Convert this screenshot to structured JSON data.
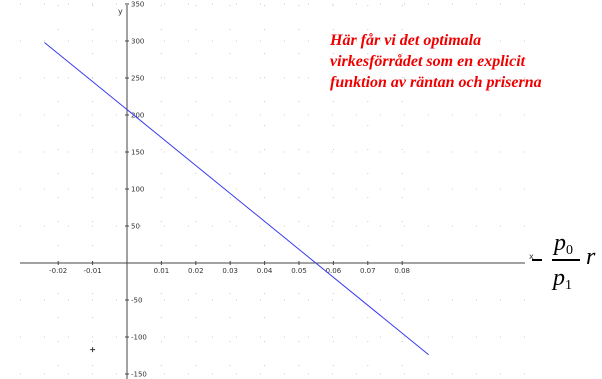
{
  "chart_data": {
    "type": "line",
    "xlabel": "x",
    "ylabel": "y",
    "xlim": [
      -0.024,
      0.093
    ],
    "ylim": [
      -160,
      360
    ],
    "x_ticks": [
      -0.02,
      -0.01,
      0.01,
      0.02,
      0.03,
      0.04,
      0.05,
      0.06,
      0.07,
      0.08
    ],
    "x_tick_labels": [
      "-0.02",
      "-0.01",
      "0.01",
      "0.02",
      "0.03",
      "0.04",
      "0.05",
      "0.06",
      "0.07",
      "0.08"
    ],
    "y_ticks": [
      350,
      300,
      250,
      200,
      150,
      100,
      50,
      -50,
      -100,
      -150
    ],
    "y_tick_labels": [
      "350",
      "300",
      "250",
      "200",
      "150",
      "100",
      "50",
      "-50",
      "-100",
      "-150"
    ],
    "grid": "dotted",
    "series": [
      {
        "x": [
          -0.024,
          0.0877
        ],
        "y": [
          298,
          -124
        ],
        "color": "#3a3af0"
      }
    ],
    "marker": {
      "x": -0.01,
      "y": -117
    }
  },
  "annotation": {
    "lines": [
      "Här får vi det optimala",
      "virkesförrådet som en explicit",
      "funktion av räntan och priserna"
    ],
    "color": "#ee0000"
  },
  "formula": {
    "minus": "−",
    "numerator": "p",
    "numerator_sub": "0",
    "denominator": "p",
    "denominator_sub": "1",
    "variable": "r"
  }
}
